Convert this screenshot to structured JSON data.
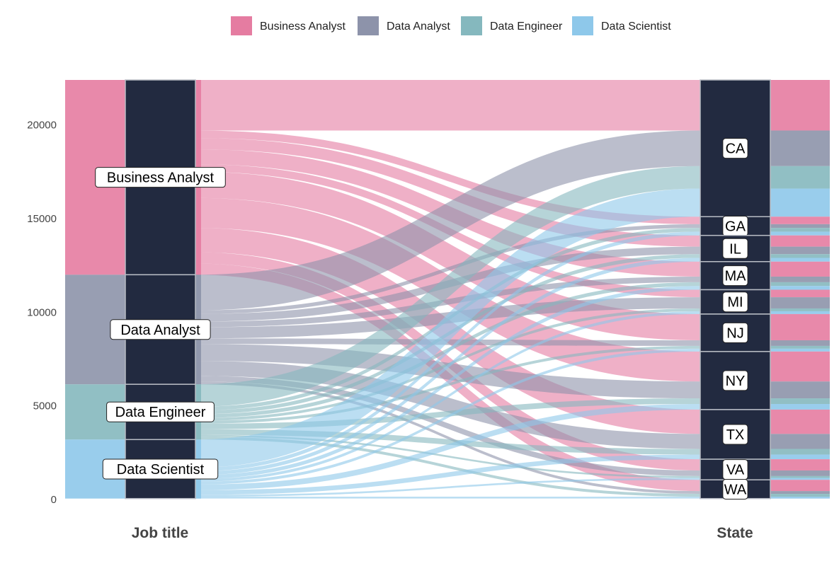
{
  "chart_data": {
    "type": "alluvial",
    "axes": [
      "Job title",
      "State"
    ],
    "job_titles": [
      "Business Analyst",
      "Data Analyst",
      "Data Engineer",
      "Data Scientist"
    ],
    "states": [
      "CA",
      "GA",
      "IL",
      "MA",
      "MI",
      "NJ",
      "NY",
      "TX",
      "VA",
      "WA"
    ],
    "colors": {
      "Business Analyst": "#e57ca1",
      "Data Analyst": "#8d93aa",
      "Data Engineer": "#85b8be",
      "Data Scientist": "#8ec8ea"
    },
    "node_fill": "#222a40",
    "y_ticks": [
      0,
      5000,
      10000,
      15000,
      20000
    ],
    "ylim": [
      0,
      22400
    ],
    "legend": [
      "Business Analyst",
      "Data Analyst",
      "Data Engineer",
      "Data Scientist"
    ],
    "flows": {
      "Business Analyst": [
        2700,
        400,
        600,
        800,
        400,
        1400,
        1600,
        1300,
        600,
        600
      ],
      "Data Analyst": [
        1900,
        200,
        400,
        300,
        600,
        300,
        900,
        800,
        300,
        150
      ],
      "Data Engineer": [
        1200,
        200,
        200,
        200,
        150,
        150,
        300,
        300,
        100,
        150
      ],
      "Data Scientist": [
        1500,
        200,
        200,
        200,
        150,
        150,
        300,
        250,
        100,
        100
      ]
    }
  }
}
